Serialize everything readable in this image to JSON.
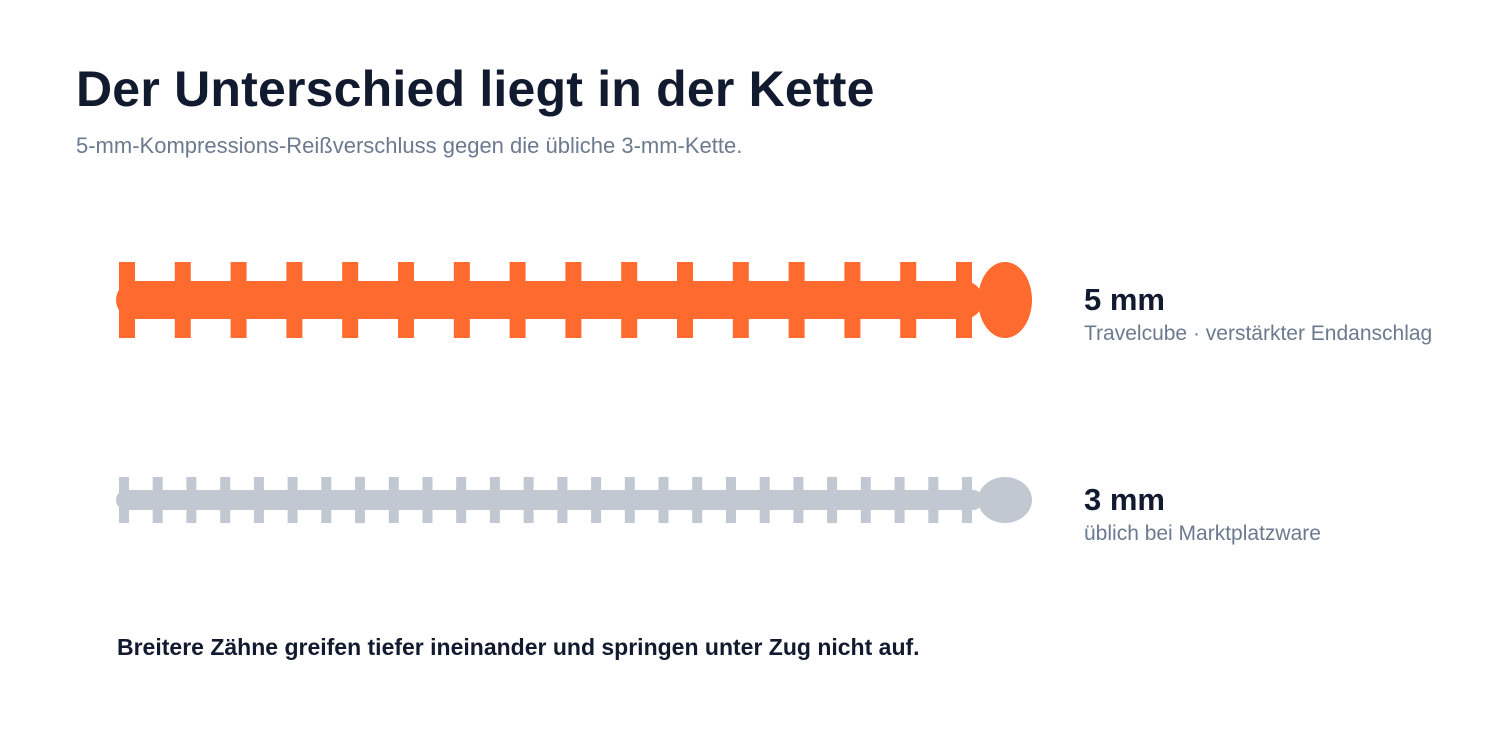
{
  "title": "Der Unterschied liegt in der Kette",
  "subtitle": "5-mm-Kompressions-Reißverschluss gegen die übliche 3-mm-Kette.",
  "zippers": [
    {
      "size_label": "5 mm",
      "description": "Travelcube · verstärkter Endanschlag",
      "color": "#ff6b2f",
      "tooth_count": 16
    },
    {
      "size_label": "3 mm",
      "description": "üblich bei Marktplatzware",
      "color": "#c1c8d2",
      "tooth_count": 26
    }
  ],
  "caption": "Breitere Zähne greifen tiefer ineinander und springen unter Zug nicht auf."
}
